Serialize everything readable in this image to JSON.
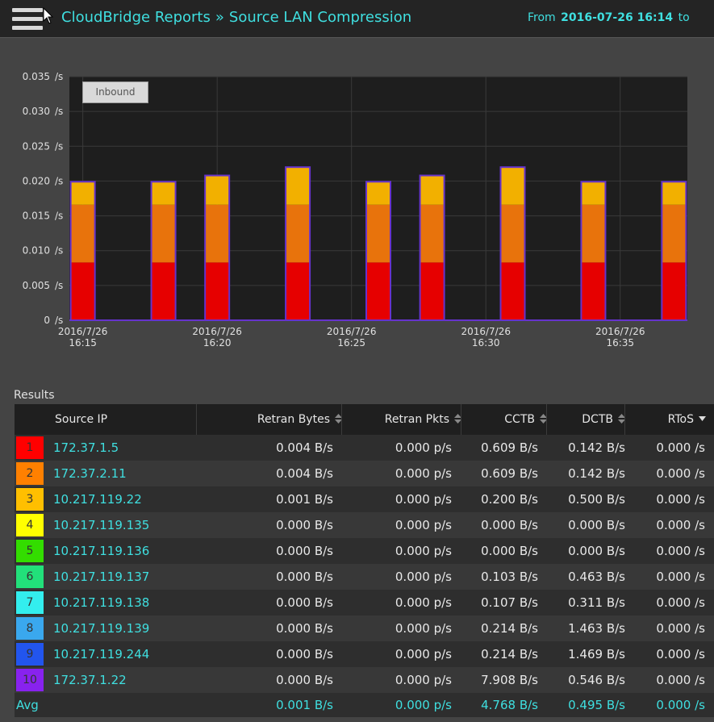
{
  "header": {
    "title_app": "CloudBridge Reports",
    "title_sep": "»",
    "title_page": "Source LAN Compression",
    "range_prefix": "From",
    "range_start": "2016-07-26 16:14",
    "range_suffix": "to"
  },
  "chart_data": {
    "type": "bar",
    "stacked": true,
    "legend_button": "Inbound",
    "y_unit": "/s",
    "ylim": [
      0,
      0.035
    ],
    "yticks": [
      {
        "value": 0.035,
        "label": "0.035"
      },
      {
        "value": 0.03,
        "label": "0.030"
      },
      {
        "value": 0.025,
        "label": "0.025"
      },
      {
        "value": 0.02,
        "label": "0.020"
      },
      {
        "value": 0.015,
        "label": "0.015"
      },
      {
        "value": 0.01,
        "label": "0.010"
      },
      {
        "value": 0.005,
        "label": "0.005"
      },
      {
        "value": 0,
        "label": "0"
      }
    ],
    "xlim_minutes": [
      14.5,
      37.5
    ],
    "xticks": [
      {
        "minute": 15,
        "line1": "2016/7/26",
        "line2": "16:15"
      },
      {
        "minute": 20,
        "line1": "2016/7/26",
        "line2": "16:20"
      },
      {
        "minute": 25,
        "line1": "2016/7/26",
        "line2": "16:25"
      },
      {
        "minute": 30,
        "line1": "2016/7/26",
        "line2": "16:30"
      },
      {
        "minute": 35,
        "line1": "2016/7/26",
        "line2": "16:35"
      }
    ],
    "series_colors": [
      "#e60000",
      "#e8730c",
      "#f2b000"
    ],
    "bars": [
      {
        "minute": 15,
        "values": [
          0.0083,
          0.0083,
          0.0033
        ]
      },
      {
        "minute": 18,
        "values": [
          0.0083,
          0.0083,
          0.0033
        ]
      },
      {
        "minute": 20,
        "values": [
          0.0083,
          0.0083,
          0.0042
        ]
      },
      {
        "minute": 23,
        "values": [
          0.0083,
          0.0083,
          0.0054
        ]
      },
      {
        "minute": 26,
        "values": [
          0.0083,
          0.0083,
          0.0033
        ]
      },
      {
        "minute": 28,
        "values": [
          0.0083,
          0.0083,
          0.0042
        ]
      },
      {
        "minute": 31,
        "values": [
          0.0083,
          0.0083,
          0.0054
        ]
      },
      {
        "minute": 34,
        "values": [
          0.0083,
          0.0083,
          0.0033
        ]
      },
      {
        "minute": 37,
        "values": [
          0.0083,
          0.0083,
          0.0033
        ]
      }
    ]
  },
  "results": {
    "label": "Results",
    "columns": [
      "Source IP",
      "Retran Bytes",
      "Retran Pkts",
      "CCTB",
      "DCTB",
      "RToS"
    ],
    "rows": [
      {
        "rank": "1",
        "color": "#ff0000",
        "ip": "172.37.1.5",
        "retran_bytes": "0.004 B/s",
        "retran_pkts": "0.000 p/s",
        "cctb": "0.609 B/s",
        "dctb": "0.142 B/s",
        "rtos": "0.000 /s"
      },
      {
        "rank": "2",
        "color": "#ff8000",
        "ip": "172.37.2.11",
        "retran_bytes": "0.004 B/s",
        "retran_pkts": "0.000 p/s",
        "cctb": "0.609 B/s",
        "dctb": "0.142 B/s",
        "rtos": "0.000 /s"
      },
      {
        "rank": "3",
        "color": "#ffbf00",
        "ip": "10.217.119.22",
        "retran_bytes": "0.001 B/s",
        "retran_pkts": "0.000 p/s",
        "cctb": "0.200 B/s",
        "dctb": "0.500 B/s",
        "rtos": "0.000 /s"
      },
      {
        "rank": "4",
        "color": "#ffff00",
        "ip": "10.217.119.135",
        "retran_bytes": "0.000 B/s",
        "retran_pkts": "0.000 p/s",
        "cctb": "0.000 B/s",
        "dctb": "0.000 B/s",
        "rtos": "0.000 /s"
      },
      {
        "rank": "5",
        "color": "#33dd00",
        "ip": "10.217.119.136",
        "retran_bytes": "0.000 B/s",
        "retran_pkts": "0.000 p/s",
        "cctb": "0.000 B/s",
        "dctb": "0.000 B/s",
        "rtos": "0.000 /s"
      },
      {
        "rank": "6",
        "color": "#22e07a",
        "ip": "10.217.119.137",
        "retran_bytes": "0.000 B/s",
        "retran_pkts": "0.000 p/s",
        "cctb": "0.103 B/s",
        "dctb": "0.463 B/s",
        "rtos": "0.000 /s"
      },
      {
        "rank": "7",
        "color": "#33eeee",
        "ip": "10.217.119.138",
        "retran_bytes": "0.000 B/s",
        "retran_pkts": "0.000 p/s",
        "cctb": "0.107 B/s",
        "dctb": "0.311 B/s",
        "rtos": "0.000 /s"
      },
      {
        "rank": "8",
        "color": "#3aa8ee",
        "ip": "10.217.119.139",
        "retran_bytes": "0.000 B/s",
        "retran_pkts": "0.000 p/s",
        "cctb": "0.214 B/s",
        "dctb": "1.463 B/s",
        "rtos": "0.000 /s"
      },
      {
        "rank": "9",
        "color": "#2255ee",
        "ip": "10.217.119.244",
        "retran_bytes": "0.000 B/s",
        "retran_pkts": "0.000 p/s",
        "cctb": "0.214 B/s",
        "dctb": "1.469 B/s",
        "rtos": "0.000 /s"
      },
      {
        "rank": "10",
        "color": "#8822ee",
        "ip": "172.37.1.22",
        "retran_bytes": "0.000 B/s",
        "retran_pkts": "0.000 p/s",
        "cctb": "7.908 B/s",
        "dctb": "0.546 B/s",
        "rtos": "0.000 /s"
      }
    ],
    "avg": {
      "label": "Avg",
      "retran_bytes": "0.001 B/s",
      "retran_pkts": "0.000 p/s",
      "cctb": "4.768 B/s",
      "dctb": "0.495 B/s",
      "rtos": "0.000 /s"
    }
  },
  "icons": {
    "menu": "menu-icon",
    "cursor": "cursor-arrow-icon",
    "sort_both": "sort-both-icon",
    "sort_down": "sort-down-icon"
  }
}
